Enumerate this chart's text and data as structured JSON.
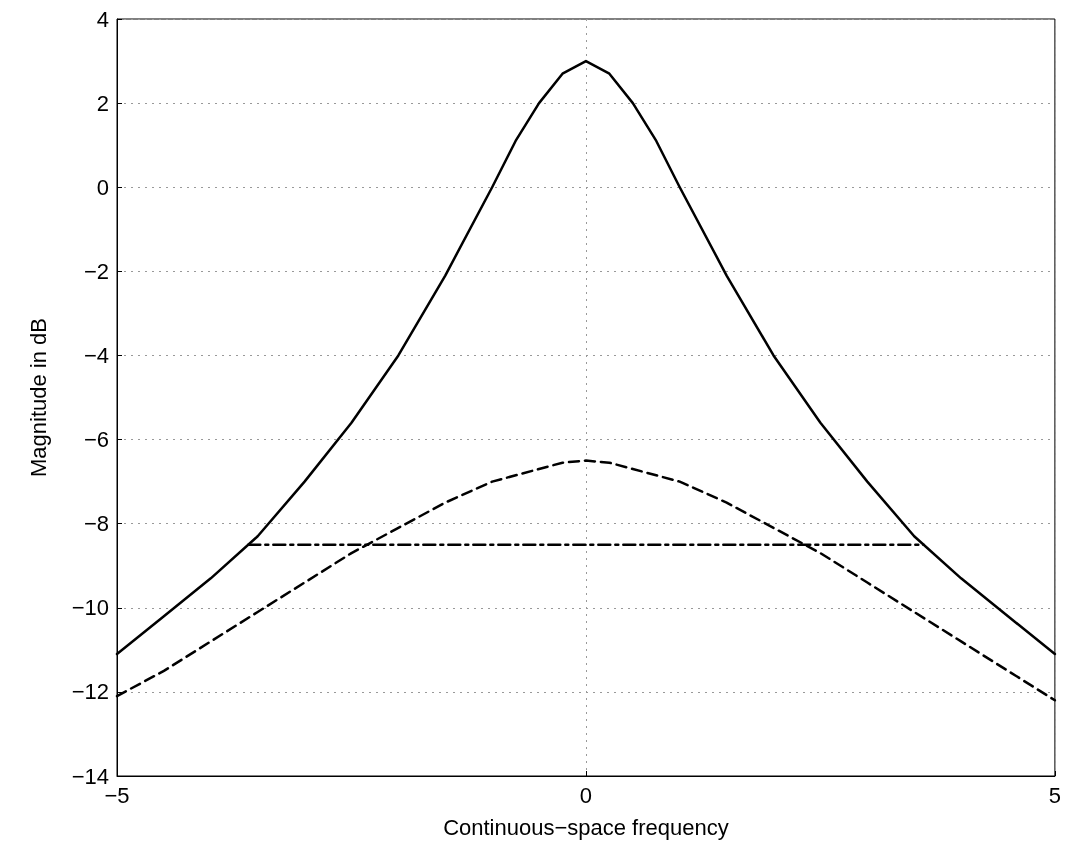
{
  "chart_data": {
    "type": "line",
    "xlabel": "Continuous−space frequency",
    "ylabel": "Magnitude in dB",
    "xlim": [
      -5,
      5
    ],
    "xticks": [
      -5,
      0,
      5
    ],
    "ylim": [
      -14,
      4
    ],
    "yticks": [
      -14,
      -12,
      -10,
      -8,
      -6,
      -4,
      -2,
      0,
      2,
      4
    ],
    "grid": true,
    "marker": "none",
    "series": [
      {
        "color": "#000000",
        "line_style": "solid",
        "x": [
          -5,
          -4.5,
          -4,
          -3.5,
          -3,
          -2.5,
          -2,
          -1.5,
          -1,
          -0.75,
          -0.5,
          -0.25,
          0,
          0.25,
          0.5,
          0.75,
          1,
          1.5,
          2,
          2.5,
          3,
          3.5,
          4,
          4.5,
          5
        ],
        "values": [
          -11.1,
          -10.2,
          -9.3,
          -8.3,
          -7,
          -5.6,
          -4,
          -2.1,
          0,
          1.1,
          2,
          2.7,
          3,
          2.7,
          2,
          1.1,
          0,
          -2.1,
          -4,
          -5.6,
          -7,
          -8.3,
          -9.3,
          -10.2,
          -11.1
        ]
      },
      {
        "color": "#000000",
        "line_style": "dashed",
        "x": [
          -5,
          -4.5,
          -4,
          -3.5,
          -3,
          -2.5,
          -2,
          -1.5,
          -1,
          -0.5,
          -0.25,
          0,
          0.25,
          0.5,
          1,
          1.5,
          2,
          2.5,
          3,
          3.5,
          4,
          4.5,
          5
        ],
        "values": [
          -12.1,
          -11.5,
          -10.8,
          -10.1,
          -9.4,
          -8.7,
          -8.1,
          -7.5,
          -7,
          -6.7,
          -6.55,
          -6.5,
          -6.55,
          -6.7,
          -7,
          -7.5,
          -8.1,
          -8.7,
          -9.4,
          -10.1,
          -10.8,
          -11.5,
          -12.2
        ]
      },
      {
        "color": "#000000",
        "line_style": "dashdot",
        "x": [
          -3.6,
          3.6
        ],
        "values": [
          -8.5,
          -8.5
        ]
      }
    ]
  }
}
